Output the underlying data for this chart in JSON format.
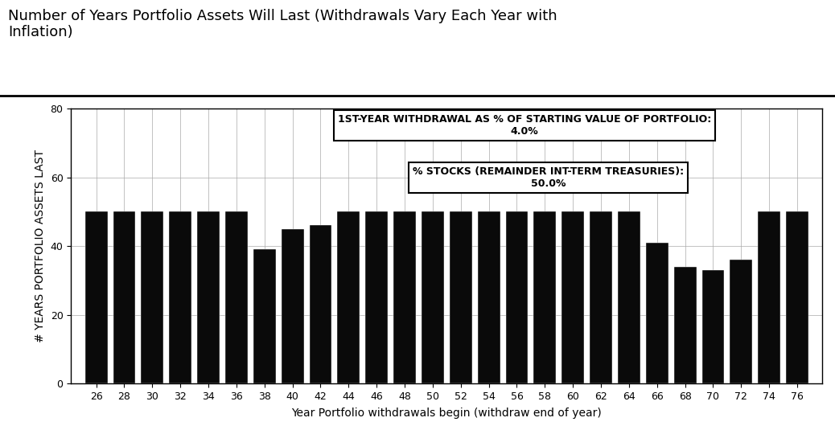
{
  "title_line1": "Number of Years Portfolio Assets Will Last (Withdrawals Vary Each Year with",
  "title_line2": "Inflation)",
  "xlabel": "Year Portfolio withdrawals begin (withdraw end of year)",
  "ylabel": "# YEARS PORTFOLIO ASSETS LAST",
  "years": [
    26,
    28,
    30,
    32,
    34,
    36,
    38,
    40,
    42,
    44,
    46,
    48,
    50,
    52,
    54,
    56,
    58,
    60,
    62,
    64,
    66,
    68,
    70,
    72,
    74,
    76
  ],
  "values": [
    50,
    50,
    50,
    50,
    50,
    50,
    39,
    45,
    46,
    50,
    50,
    50,
    50,
    50,
    50,
    50,
    50,
    50,
    50,
    50,
    41,
    34,
    33,
    36,
    50,
    50
  ],
  "bar_color": "#0a0a0a",
  "background_color": "#ffffff",
  "ylim": [
    0,
    80
  ],
  "yticks": [
    0,
    20,
    40,
    60,
    80
  ],
  "ann1_line1": "1ST-YEAR WITHDRAWAL AS % OF STARTING VALUE OF PORTFOLIO:",
  "ann1_line2": "4.0%",
  "ann2_line1": "% STOCKS (REMAINDER INT-TERM TREASURIES):",
  "ann2_line2": "50.0%",
  "title_fontsize": 13,
  "axis_label_fontsize": 10,
  "tick_fontsize": 9,
  "ann_fontsize": 9
}
